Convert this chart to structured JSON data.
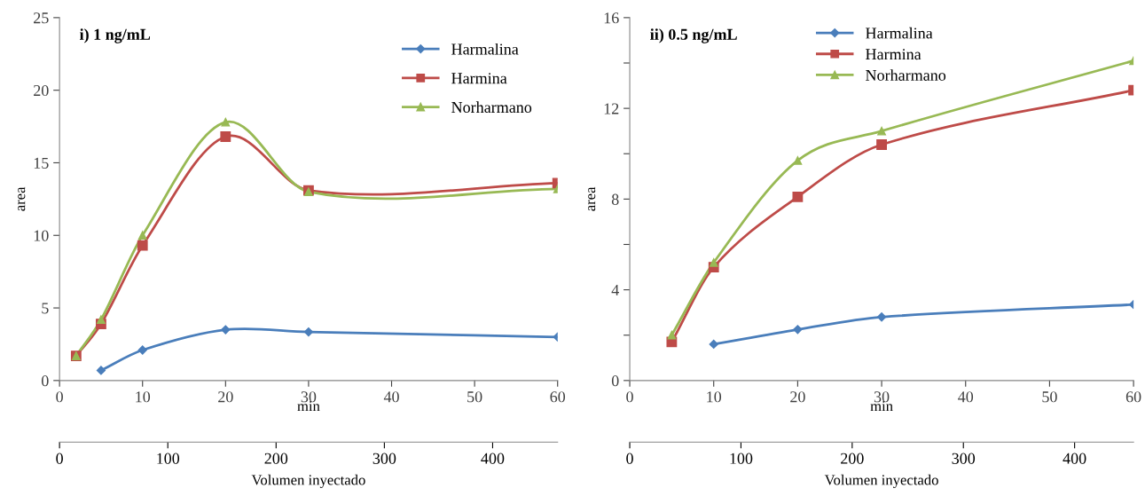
{
  "chart_data": [
    {
      "type": "line",
      "title": "i) 1 ng/mL",
      "xlabel": "min",
      "ylabel": "area",
      "x2label": "Volumen inyectado",
      "xlim": [
        0,
        60
      ],
      "xticks": [
        0,
        10,
        20,
        30,
        40,
        50,
        60
      ],
      "ylim": [
        0,
        25
      ],
      "yticks": [
        0,
        5,
        10,
        15,
        20,
        25
      ],
      "x2lim": [
        0,
        460
      ],
      "x2ticks": [
        0,
        100,
        200,
        300,
        400
      ],
      "grid": false,
      "legend": "top right",
      "line_style": "solid",
      "series": [
        {
          "name": "Harmalina",
          "color": "#4a7ebb",
          "marker": "diamond",
          "x": [
            5,
            10,
            20,
            30,
            60
          ],
          "values": [
            0.7,
            2.1,
            3.5,
            3.35,
            3.0
          ]
        },
        {
          "name": "Harmina",
          "color": "#be4b48",
          "marker": "square",
          "x": [
            2,
            5,
            10,
            20,
            30,
            60
          ],
          "values": [
            1.7,
            3.9,
            9.3,
            16.8,
            13.1,
            13.6
          ]
        },
        {
          "name": "Norharmano",
          "color": "#98b954",
          "marker": "triangle",
          "x": [
            2,
            5,
            10,
            20,
            30,
            60
          ],
          "values": [
            1.7,
            4.2,
            10.0,
            17.8,
            13.0,
            13.2
          ]
        }
      ]
    },
    {
      "type": "line",
      "title": "ii) 0.5 ng/mL",
      "xlabel": "min",
      "ylabel": "area",
      "x2label": "Volumen inyectado",
      "xlim": [
        0,
        60
      ],
      "xticks": [
        0,
        10,
        20,
        30,
        40,
        50,
        60
      ],
      "ylim": [
        0,
        16
      ],
      "yticks": [
        0,
        {
          "value": 2,
          "label": null
        },
        4,
        {
          "value": 6,
          "label": null
        },
        8,
        {
          "value": 10,
          "label": null
        },
        12,
        {
          "value": 14,
          "label": null
        },
        16
      ],
      "x2lim": [
        0,
        453
      ],
      "x2ticks": [
        0,
        100,
        200,
        300,
        400
      ],
      "grid": false,
      "legend": "top",
      "line_style": "solid",
      "series": [
        {
          "name": "Harmalina",
          "color": "#4a7ebb",
          "marker": "diamond",
          "x": [
            10,
            20,
            30,
            60
          ],
          "values": [
            1.6,
            2.25,
            2.8,
            3.35
          ]
        },
        {
          "name": "Harmina",
          "color": "#be4b48",
          "marker": "square",
          "x": [
            5,
            10,
            20,
            30,
            60
          ],
          "values": [
            1.7,
            5.0,
            8.1,
            10.4,
            12.8
          ]
        },
        {
          "name": "Norharmano",
          "color": "#98b954",
          "marker": "triangle",
          "x": [
            5,
            10,
            20,
            30,
            60
          ],
          "values": [
            2.0,
            5.2,
            9.7,
            11.0,
            14.1
          ]
        }
      ]
    }
  ]
}
